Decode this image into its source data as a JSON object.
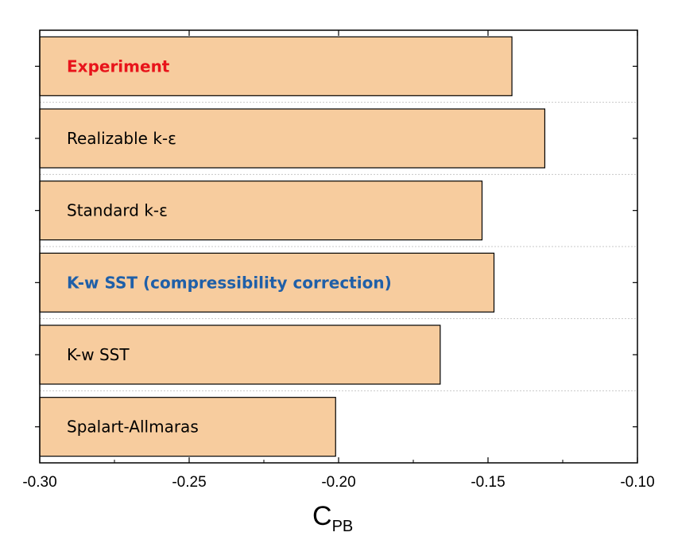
{
  "chart_data": {
    "type": "bar",
    "orientation": "horizontal",
    "categories": [
      "Experiment",
      "Realizable k-ε",
      "Standard k-ε",
      "K-w SST (compressibility correction)",
      "K-w SST",
      "Spalart-Allmaras"
    ],
    "values": [
      -0.142,
      -0.131,
      -0.152,
      -0.148,
      -0.166,
      -0.201
    ],
    "label_colors": [
      "#e8141b",
      "#000000",
      "#000000",
      "#1f5fa8",
      "#000000",
      "#000000"
    ],
    "label_bold": [
      true,
      false,
      false,
      true,
      false,
      false
    ],
    "bar_color": "#f7cc9e",
    "bar_edge_color": "#000000",
    "xlabel_main": "C",
    "xlabel_sub": "PB",
    "xlim": [
      -0.3,
      -0.1
    ],
    "xticks": [
      "-0.30",
      "-0.25",
      "-0.20",
      "-0.15",
      "-0.10"
    ],
    "grid": "horizontal dotted between bars",
    "legend": "none"
  }
}
